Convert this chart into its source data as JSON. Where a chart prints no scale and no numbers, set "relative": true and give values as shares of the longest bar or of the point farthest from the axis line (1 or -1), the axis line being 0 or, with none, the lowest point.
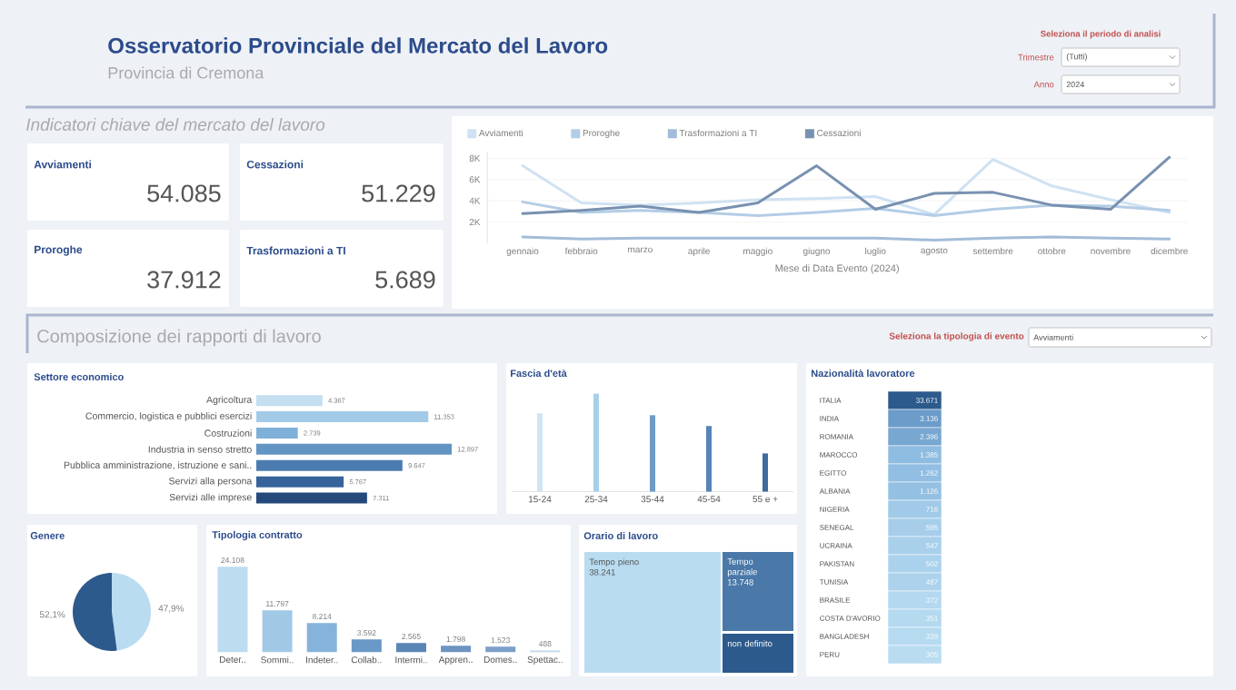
{
  "chart_data": [
    {
      "type": "other",
      "title": "Osservatorio Provinciale del Mercato del Lavoro",
      "subtitle": "Provincia di Cremona",
      "annotations": [
        "Seleziona il periodo di analisi",
        "Trimestre",
        "(Tutti)",
        "Anno",
        "2024"
      ]
    },
    {
      "type": "other",
      "title": "Indicatori chiave del mercato del lavoro",
      "categories": [
        "Avviamenti",
        "Cessazioni",
        "Proroghe",
        "Trasformazioni a TI"
      ],
      "value_labels": [
        "54.085",
        "51.229",
        "37.912",
        "5.689"
      ]
    },
    {
      "type": "line",
      "categories": [
        "gennaio",
        "febbraio",
        "marzo",
        "aprile",
        "maggio",
        "giugno",
        "luglio",
        "agosto",
        "settembre",
        "ottobre",
        "novembre",
        "dicembre"
      ],
      "xlabel": "Mese di Data Evento (2024)",
      "ylim": [
        0,
        8600
      ],
      "yticks": [
        {
          "value": 2000,
          "label": "2K"
        },
        {
          "value": 4000,
          "label": "4K"
        },
        {
          "value": 6000,
          "label": "6K"
        },
        {
          "value": 8000,
          "label": "8K"
        }
      ],
      "grid": "y",
      "legend": "top left",
      "series": [
        {
          "name": "Avviamenti",
          "color": "#cfe2f3",
          "values": [
            7300,
            3800,
            3600,
            3800,
            4100,
            4200,
            4400,
            2700,
            7900,
            5400,
            4100,
            2900
          ]
        },
        {
          "name": "Proroghe",
          "color": "#b3cde6",
          "values": [
            3900,
            2900,
            3100,
            2900,
            2600,
            2900,
            3300,
            2600,
            3200,
            3600,
            3500,
            3100
          ]
        },
        {
          "name": "Trasformazioni a TI",
          "color": "#a3bcd8",
          "values": [
            600,
            400,
            500,
            500,
            500,
            500,
            500,
            300,
            500,
            600,
            500,
            400
          ]
        },
        {
          "name": "Cessazioni",
          "color": "#7891b0",
          "values": [
            2800,
            3100,
            3500,
            2900,
            3800,
            7300,
            3200,
            4700,
            4800,
            3600,
            3200,
            8100
          ]
        }
      ]
    },
    {
      "type": "other",
      "title": "Composizione dei rapporti di lavoro",
      "annotations": [
        "Seleziona la tipologia di evento",
        "Avviamenti"
      ]
    },
    {
      "type": "bar",
      "orientation": "horizontal",
      "title": "Settore economico",
      "categories": [
        "Agricoltura",
        "Commercio, logistica e pubblici esercizi",
        "Costruzioni",
        "Industria in senso stretto",
        "Pubblica amministrazione, istruzione e sani..",
        "Servizi alla persona",
        "Servizi alle imprese"
      ],
      "values": [
        4367,
        11353,
        2739,
        12897,
        9647,
        5767,
        7311
      ],
      "value_labels": [
        "4.367",
        "11.353",
        "2.739",
        "12.897",
        "9.647",
        "5.767",
        "7.311"
      ],
      "colors": [
        "#c3dff1",
        "#a3cae7",
        "#7fb0d9",
        "#6395c4",
        "#4b7bb0",
        "#36639a",
        "#25497a"
      ]
    },
    {
      "type": "bar",
      "title": "Fascia d'età",
      "relative": true,
      "categories": [
        "15-24",
        "25-34",
        "35-44",
        "45-54",
        "55 e +"
      ],
      "values": [
        0.8,
        1,
        0.78,
        0.67,
        0.39
      ],
      "colors": [
        "#cfe5f5",
        "#a8cfea",
        "#6e9cc8",
        "#5585b7",
        "#3f6b9c"
      ]
    },
    {
      "type": "heatmap",
      "title": "Nazionalità lavoratore",
      "categories": [
        null
      ],
      "y_categories": [
        "ITALIA",
        "INDIA",
        "ROMANIA",
        "MAROCCO",
        "EGITTO",
        "ALBANIA",
        "NIGERIA",
        "SENEGAL",
        "UCRAINA",
        "PAKISTAN",
        "TUNISIA",
        "BRASILE",
        "COSTA D'AVORIO",
        "BANGLADESH",
        "PERU"
      ],
      "cells": [
        [
          33671
        ],
        [
          3136
        ],
        [
          2396
        ],
        [
          1385
        ],
        [
          1262
        ],
        [
          1126
        ],
        [
          716
        ],
        [
          595
        ],
        [
          547
        ],
        [
          502
        ],
        [
          487
        ],
        [
          372
        ],
        [
          351
        ],
        [
          339
        ],
        [
          305
        ]
      ],
      "cell_labels": [
        [
          "33.671"
        ],
        [
          "3.136"
        ],
        [
          "2.396"
        ],
        [
          "1.385"
        ],
        [
          "1.262"
        ],
        [
          "1.126"
        ],
        [
          "716"
        ],
        [
          "595"
        ],
        [
          "547"
        ],
        [
          "502"
        ],
        [
          "487"
        ],
        [
          "372"
        ],
        [
          "351"
        ],
        [
          "339"
        ],
        [
          "305"
        ]
      ]
    },
    {
      "type": "pie",
      "title": "Genere",
      "categories": [
        null,
        null
      ],
      "values": [
        47.9,
        52.1
      ],
      "colors": [
        "#b9dcf1",
        "#2d5a8c"
      ],
      "value_labels": [
        "47,9%",
        "52,1%"
      ]
    },
    {
      "type": "bar",
      "title": "Tipologia contratto",
      "categories": [
        "Deter..",
        "Sommi..",
        "Indeter..",
        "Collab..",
        "Intermi..",
        "Appren..",
        "Domes..",
        "Spettac.."
      ],
      "values": [
        24108,
        11797,
        8214,
        3592,
        2565,
        1798,
        1523,
        488
      ],
      "value_labels": [
        "24.108",
        "11.797",
        "8.214",
        "3.592",
        "2.565",
        "1.798",
        "1.523",
        "488"
      ],
      "colors": [
        "#bddcf0",
        "#a1c9e6",
        "#86b3da",
        "#6a98c7",
        "#5a86b6",
        "#6d93c0",
        "#7b9fc8",
        "#c0d6eb"
      ]
    },
    {
      "type": "other",
      "title": "Orario di lavoro",
      "categories": [
        "Tempo pieno",
        "Tempo parziale",
        "non definito"
      ],
      "value_labels": [
        "38.241",
        "13.748",
        null
      ],
      "colors": [
        "#b9dcf1",
        "#4a78a8",
        "#2d5a8c"
      ]
    }
  ]
}
